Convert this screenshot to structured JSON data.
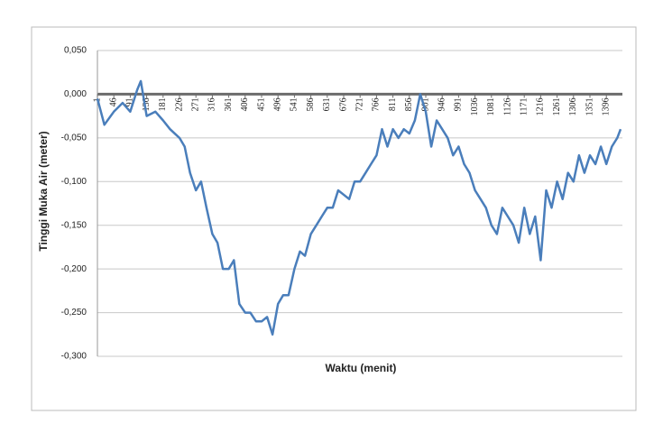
{
  "chart_data": {
    "type": "line",
    "y_axis_label": "Tinggi Muka Air (meter)",
    "x_axis_label": "Waktu (menit)",
    "xlim": [
      1,
      1440
    ],
    "xticks": [
      1,
      46,
      91,
      136,
      181,
      226,
      271,
      316,
      361,
      406,
      451,
      496,
      541,
      586,
      631,
      676,
      721,
      766,
      811,
      856,
      901,
      946,
      991,
      1036,
      1081,
      1126,
      1171,
      1216,
      1261,
      1306,
      1351,
      1396
    ],
    "ylim": [
      -0.3,
      0.05
    ],
    "yticks": [
      {
        "value": 0.05,
        "label": "0,050"
      },
      {
        "value": 0,
        "label": "0,000"
      },
      {
        "value": -0.05,
        "label": "-0,050"
      },
      {
        "value": -0.1,
        "label": "-0,100"
      },
      {
        "value": -0.15,
        "label": "-0,150"
      },
      {
        "value": -0.2,
        "label": "-0,200"
      },
      {
        "value": -0.25,
        "label": "-0,250"
      },
      {
        "value": -0.3,
        "label": "-0,300"
      }
    ],
    "grid": true,
    "series": [
      {
        "color": "#4a7ebb",
        "x": [
          1,
          20,
          46,
          70,
          91,
          110,
          120,
          136,
          160,
          181,
          200,
          226,
          240,
          255,
          271,
          285,
          300,
          316,
          330,
          345,
          361,
          375,
          390,
          406,
          420,
          436,
          451,
          466,
          481,
          496,
          510,
          525,
          541,
          556,
          570,
          586,
          601,
          616,
          631,
          646,
          661,
          676,
          691,
          706,
          721,
          736,
          751,
          766,
          781,
          796,
          811,
          826,
          841,
          856,
          871,
          886,
          901,
          916,
          931,
          946,
          961,
          976,
          991,
          1006,
          1021,
          1036,
          1051,
          1066,
          1081,
          1096,
          1111,
          1126,
          1141,
          1156,
          1171,
          1186,
          1201,
          1216,
          1231,
          1246,
          1261,
          1276,
          1291,
          1306,
          1321,
          1336,
          1351,
          1366,
          1381,
          1396,
          1411,
          1426,
          1435
        ],
        "values": [
          -0.005,
          -0.035,
          -0.02,
          -0.01,
          -0.02,
          0.005,
          0.015,
          -0.025,
          -0.02,
          -0.03,
          -0.04,
          -0.05,
          -0.06,
          -0.09,
          -0.11,
          -0.1,
          -0.13,
          -0.16,
          -0.17,
          -0.2,
          -0.2,
          -0.19,
          -0.24,
          -0.25,
          -0.25,
          -0.26,
          -0.26,
          -0.255,
          -0.275,
          -0.24,
          -0.23,
          -0.23,
          -0.2,
          -0.18,
          -0.185,
          -0.16,
          -0.15,
          -0.14,
          -0.13,
          -0.13,
          -0.11,
          -0.115,
          -0.12,
          -0.1,
          -0.1,
          -0.09,
          -0.08,
          -0.07,
          -0.04,
          -0.06,
          -0.04,
          -0.05,
          -0.04,
          -0.045,
          -0.03,
          0.0,
          -0.02,
          -0.06,
          -0.03,
          -0.04,
          -0.05,
          -0.07,
          -0.06,
          -0.08,
          -0.09,
          -0.11,
          -0.12,
          -0.13,
          -0.15,
          -0.16,
          -0.13,
          -0.14,
          -0.15,
          -0.17,
          -0.13,
          -0.16,
          -0.14,
          -0.19,
          -0.11,
          -0.13,
          -0.1,
          -0.12,
          -0.09,
          -0.1,
          -0.07,
          -0.09,
          -0.07,
          -0.08,
          -0.06,
          -0.08,
          -0.06,
          -0.05,
          -0.04
        ]
      }
    ]
  }
}
